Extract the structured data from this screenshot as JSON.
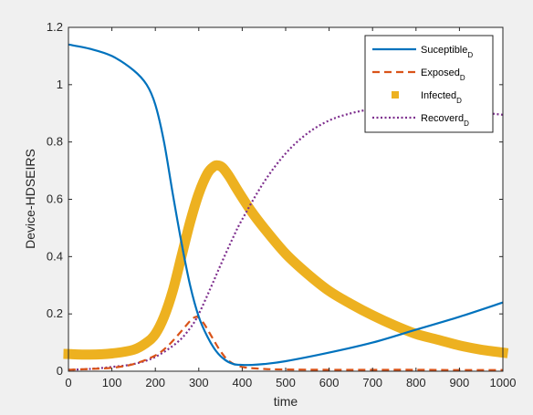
{
  "colors": {
    "figure_bg": "#f0f0f0",
    "axes_bg": "#ffffff",
    "axis": "#262626"
  },
  "chart_data": {
    "type": "line",
    "title": "",
    "xlabel": "time",
    "ylabel": "Device-HDSEIRS",
    "xlim": [
      0,
      1000
    ],
    "ylim": [
      0,
      1.2
    ],
    "xticks": [
      0,
      100,
      200,
      300,
      400,
      500,
      600,
      700,
      800,
      900,
      1000
    ],
    "xtick_labels": [
      "0",
      "100",
      "200",
      "300",
      "400",
      "500",
      "600",
      "700",
      "800",
      "900",
      "1000"
    ],
    "yticks": [
      0,
      0.2,
      0.4,
      0.6,
      0.8,
      1,
      1.2
    ],
    "ytick_labels": [
      "0",
      "0.2",
      "0.4",
      "0.6",
      "0.8",
      "1",
      "1.2"
    ],
    "grid": false,
    "legend_position": "top-right",
    "series": [
      {
        "name": "Suceptible",
        "name_sub": "D",
        "color": "#0072bd",
        "style": "solid",
        "x": [
          0,
          50,
          100,
          150,
          180,
          200,
          220,
          240,
          260,
          280,
          300,
          320,
          340,
          360,
          380,
          400,
          420,
          450,
          500,
          600,
          700,
          800,
          900,
          1000
        ],
        "y": [
          1.14,
          1.125,
          1.1,
          1.05,
          1.0,
          0.93,
          0.8,
          0.62,
          0.45,
          0.3,
          0.19,
          0.12,
          0.07,
          0.04,
          0.025,
          0.022,
          0.022,
          0.025,
          0.035,
          0.065,
          0.1,
          0.145,
          0.19,
          0.24
        ]
      },
      {
        "name": "Exposed",
        "name_sub": "D",
        "color": "#d95319",
        "style": "dashed",
        "x": [
          0,
          50,
          100,
          150,
          200,
          230,
          260,
          280,
          295,
          310,
          330,
          350,
          370,
          400,
          450,
          500,
          600,
          700,
          800,
          900,
          1000
        ],
        "y": [
          0.005,
          0.008,
          0.012,
          0.025,
          0.055,
          0.09,
          0.14,
          0.175,
          0.19,
          0.17,
          0.12,
          0.07,
          0.035,
          0.015,
          0.008,
          0.006,
          0.005,
          0.005,
          0.005,
          0.004,
          0.004
        ]
      },
      {
        "name": "Infected",
        "name_sub": "D",
        "color": "#edb120",
        "style": "markers",
        "x": [
          0,
          50,
          100,
          150,
          180,
          200,
          220,
          240,
          260,
          280,
          300,
          320,
          335,
          345,
          355,
          370,
          390,
          420,
          450,
          500,
          550,
          600,
          650,
          700,
          750,
          800,
          850,
          900,
          950,
          1000
        ],
        "y": [
          0.06,
          0.058,
          0.062,
          0.075,
          0.1,
          0.13,
          0.19,
          0.28,
          0.4,
          0.52,
          0.62,
          0.69,
          0.715,
          0.718,
          0.71,
          0.68,
          0.63,
          0.56,
          0.5,
          0.41,
          0.34,
          0.28,
          0.235,
          0.195,
          0.16,
          0.13,
          0.11,
          0.09,
          0.075,
          0.065
        ]
      },
      {
        "name": "Recoverd",
        "name_sub": "D",
        "color": "#7e2f8e",
        "style": "dotted",
        "x": [
          0,
          50,
          100,
          150,
          200,
          250,
          280,
          300,
          330,
          350,
          380,
          400,
          450,
          500,
          550,
          600,
          650,
          700,
          750,
          800,
          900,
          1000
        ],
        "y": [
          0.005,
          0.008,
          0.015,
          0.025,
          0.05,
          0.1,
          0.15,
          0.2,
          0.3,
          0.37,
          0.47,
          0.53,
          0.66,
          0.76,
          0.83,
          0.875,
          0.9,
          0.915,
          0.92,
          0.918,
          0.91,
          0.895
        ]
      }
    ]
  }
}
